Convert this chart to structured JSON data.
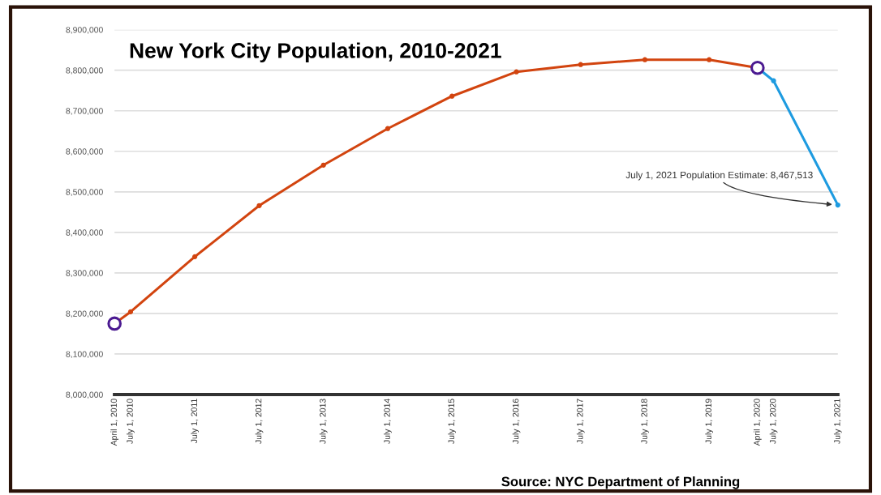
{
  "chart_data": {
    "type": "line",
    "title": "New York City Population, 2010-2021",
    "series": [
      {
        "color": "#d2440f",
        "x": [
          "2010-04-01",
          "2010-07-01",
          "2011-07-01",
          "2012-07-01",
          "2013-07-01",
          "2014-07-01",
          "2015-07-01",
          "2016-07-01",
          "2017-07-01",
          "2018-07-01",
          "2019-07-01",
          "2020-04-01"
        ],
        "values": [
          8175000,
          8204000,
          8340000,
          8466000,
          8566000,
          8656000,
          8736000,
          8796000,
          8814000,
          8826000,
          8826000,
          8806000
        ]
      },
      {
        "color": "#1e9be0",
        "x": [
          "2020-04-01",
          "2020-07-01",
          "2021-07-01"
        ],
        "values": [
          8806000,
          8774000,
          8467513
        ]
      },
      {
        "type": "scatter",
        "color": "#4b1a91",
        "x": [
          "2010-04-01",
          "2020-04-01"
        ],
        "values": [
          8175000,
          8806000
        ]
      }
    ],
    "marker": "circle",
    "xlim": [
      "2010-04-01",
      "2021-07-01"
    ],
    "xticks": [
      {
        "value": "2010-04-01",
        "label": "April 1, 2010"
      },
      {
        "value": "2010-07-01",
        "label": "July 1, 2010"
      },
      {
        "value": "2011-07-01",
        "label": "July 1, 2011"
      },
      {
        "value": "2012-07-01",
        "label": "July 1, 2012"
      },
      {
        "value": "2013-07-01",
        "label": "July 1, 2013"
      },
      {
        "value": "2014-07-01",
        "label": "July 1, 2014"
      },
      {
        "value": "2015-07-01",
        "label": "July 1, 2015"
      },
      {
        "value": "2016-07-01",
        "label": "July 1, 2016"
      },
      {
        "value": "2017-07-01",
        "label": "July 1, 2017"
      },
      {
        "value": "2018-07-01",
        "label": "July 1, 2018"
      },
      {
        "value": "2019-07-01",
        "label": "July 1, 2019"
      },
      {
        "value": "2020-04-01",
        "label": "April 1, 2020"
      },
      {
        "value": "2020-07-01",
        "label": "July 1, 2020"
      },
      {
        "value": "2021-07-01",
        "label": "July 1, 2021"
      }
    ],
    "ylim": [
      8000000,
      8900000
    ],
    "yticks": [
      {
        "value": 8000000,
        "label": "8,000,000"
      },
      {
        "value": 8100000,
        "label": "8,100,000"
      },
      {
        "value": 8200000,
        "label": "8,200,000"
      },
      {
        "value": 8300000,
        "label": "8,300,000"
      },
      {
        "value": 8400000,
        "label": "8,400,000"
      },
      {
        "value": 8500000,
        "label": "8,500,000"
      },
      {
        "value": 8600000,
        "label": "8,600,000"
      },
      {
        "value": 8700000,
        "label": "8,700,000"
      },
      {
        "value": 8800000,
        "label": "8,800,000"
      },
      {
        "value": 8900000,
        "label": "8,900,000"
      }
    ],
    "grid": "y",
    "annotations": [
      {
        "text": "July 1, 2021 Population Estimate: 8,467,513",
        "x": "2021-07-01",
        "y": 8467513
      },
      "Source: NYC Department of Planning"
    ]
  }
}
